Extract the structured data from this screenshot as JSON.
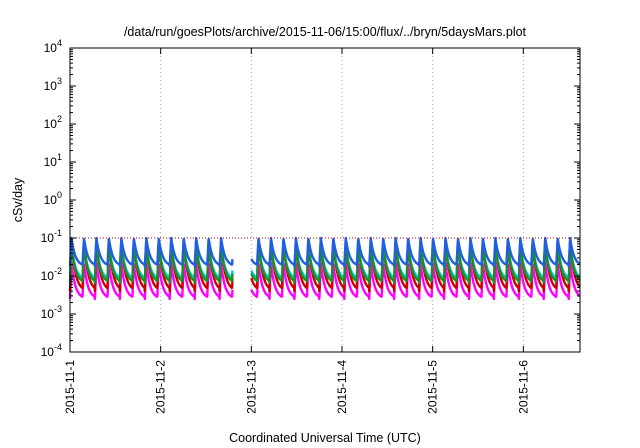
{
  "chart_data": {
    "type": "line",
    "title": "/data/run/goesPlots/archive/2015-11-06/15:00/flux/../bryn/5daysMars.plot",
    "xlabel": "Coordinated Universal Time (UTC)",
    "ylabel": "cSv/day",
    "yscale": "log",
    "ylim": [
      0.0001,
      10000
    ],
    "xlim": [
      "2015-11-01",
      "2015-11-06 15:00"
    ],
    "x_tick_labels": [
      "2015-11-1",
      "2015-11-2",
      "2015-11-3",
      "2015-11-4",
      "2015-11-5",
      "2015-11-6"
    ],
    "y_ticks": [
      {
        "base": "10",
        "exp": "-4"
      },
      {
        "base": "10",
        "exp": "-3"
      },
      {
        "base": "10",
        "exp": "-2"
      },
      {
        "base": "10",
        "exp": "-1"
      },
      {
        "base": "10",
        "exp": "0"
      },
      {
        "base": "10",
        "exp": "1"
      },
      {
        "base": "10",
        "exp": "2"
      },
      {
        "base": "10",
        "exp": "3"
      },
      {
        "base": "10",
        "exp": "4"
      }
    ],
    "grid": true,
    "legend": "none",
    "period_hours": 3.3,
    "data_gap": {
      "start": "2015-11-02 19:00",
      "end": "2015-11-03 00:00"
    },
    "reference_level": 0.1,
    "series": [
      {
        "color": "#ff00ff",
        "peak": 0.022,
        "trough": 0.0025
      },
      {
        "color": "#cc0000",
        "peak": 0.09,
        "trough": 0.004
      },
      {
        "color": "#00cccc",
        "peak": 0.07,
        "trough": 0.008
      },
      {
        "color": "#228b22",
        "peak": 0.065,
        "trough": 0.0065
      },
      {
        "color": "#1f5fe0",
        "peak": 0.1,
        "trough": 0.018
      }
    ]
  }
}
